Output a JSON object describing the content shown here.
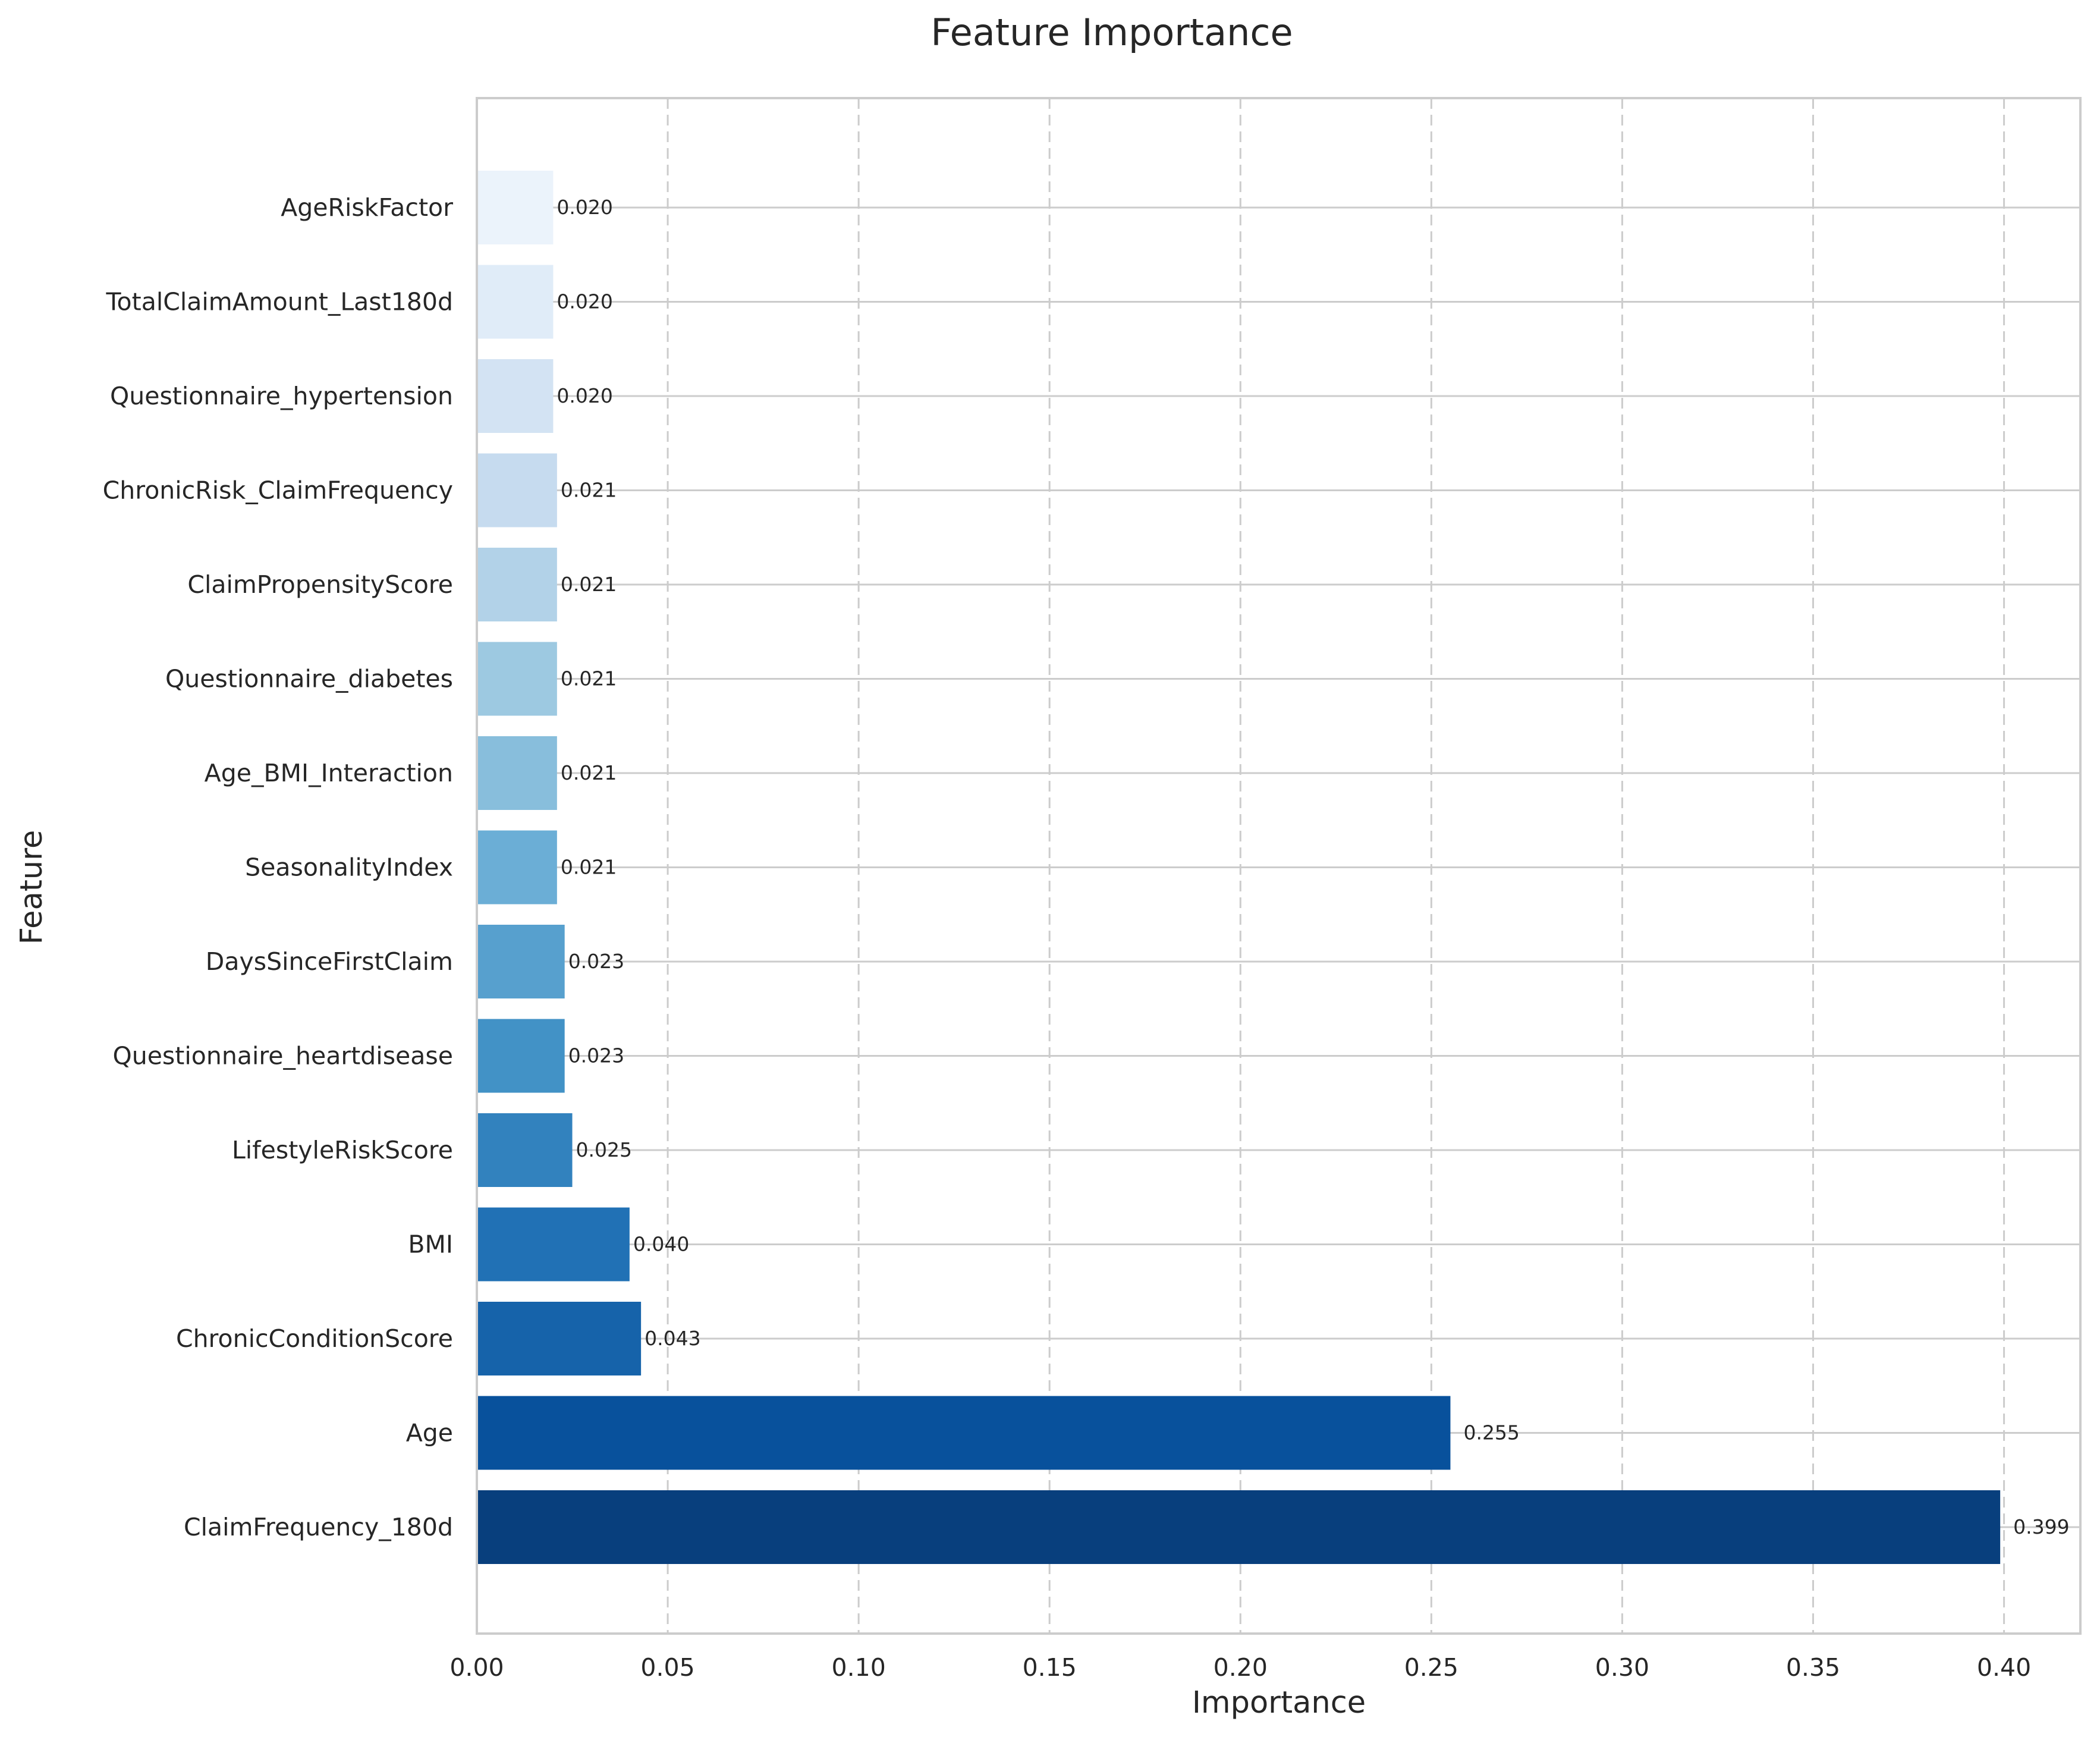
{
  "chart_data": {
    "type": "bar",
    "orientation": "horizontal",
    "title": "Feature Importance",
    "xlabel": "Importance",
    "ylabel": "Feature",
    "xlim": [
      0,
      0.42
    ],
    "x_ticks": [
      "0.00",
      "0.05",
      "0.10",
      "0.15",
      "0.20",
      "0.25",
      "0.30",
      "0.35",
      "0.40"
    ],
    "grid": true,
    "categories": [
      "ClaimFrequency_180d",
      "Age",
      "ChronicConditionScore",
      "BMI",
      "LifestyleRiskScore",
      "Questionnaire_heartdisease",
      "DaysSinceFirstClaim",
      "SeasonalityIndex",
      "Age_BMI_Interaction",
      "Questionnaire_diabetes",
      "ClaimPropensityScore",
      "ChronicRisk_ClaimFrequency",
      "Questionnaire_hypertension",
      "TotalClaimAmount_Last180d",
      "AgeRiskFactor"
    ],
    "values": [
      0.399,
      0.255,
      0.043,
      0.04,
      0.025,
      0.023,
      0.023,
      0.021,
      0.021,
      0.021,
      0.021,
      0.021,
      0.02,
      0.02,
      0.02
    ],
    "value_labels": [
      "0.399",
      "0.255",
      "0.043",
      "0.040",
      "0.025",
      "0.023",
      "0.023",
      "0.021",
      "0.021",
      "0.021",
      "0.021",
      "0.021",
      "0.020",
      "0.020",
      "0.020"
    ],
    "colors": [
      "#083f7d",
      "#08519c",
      "#1663aa",
      "#2171b5",
      "#3282be",
      "#4292c6",
      "#57a0ce",
      "#6baed6",
      "#88bedc",
      "#9dc9e1",
      "#b2d2e8",
      "#c6dbef",
      "#d3e3f3",
      "#e0ecf8",
      "#ebf3fb"
    ]
  }
}
